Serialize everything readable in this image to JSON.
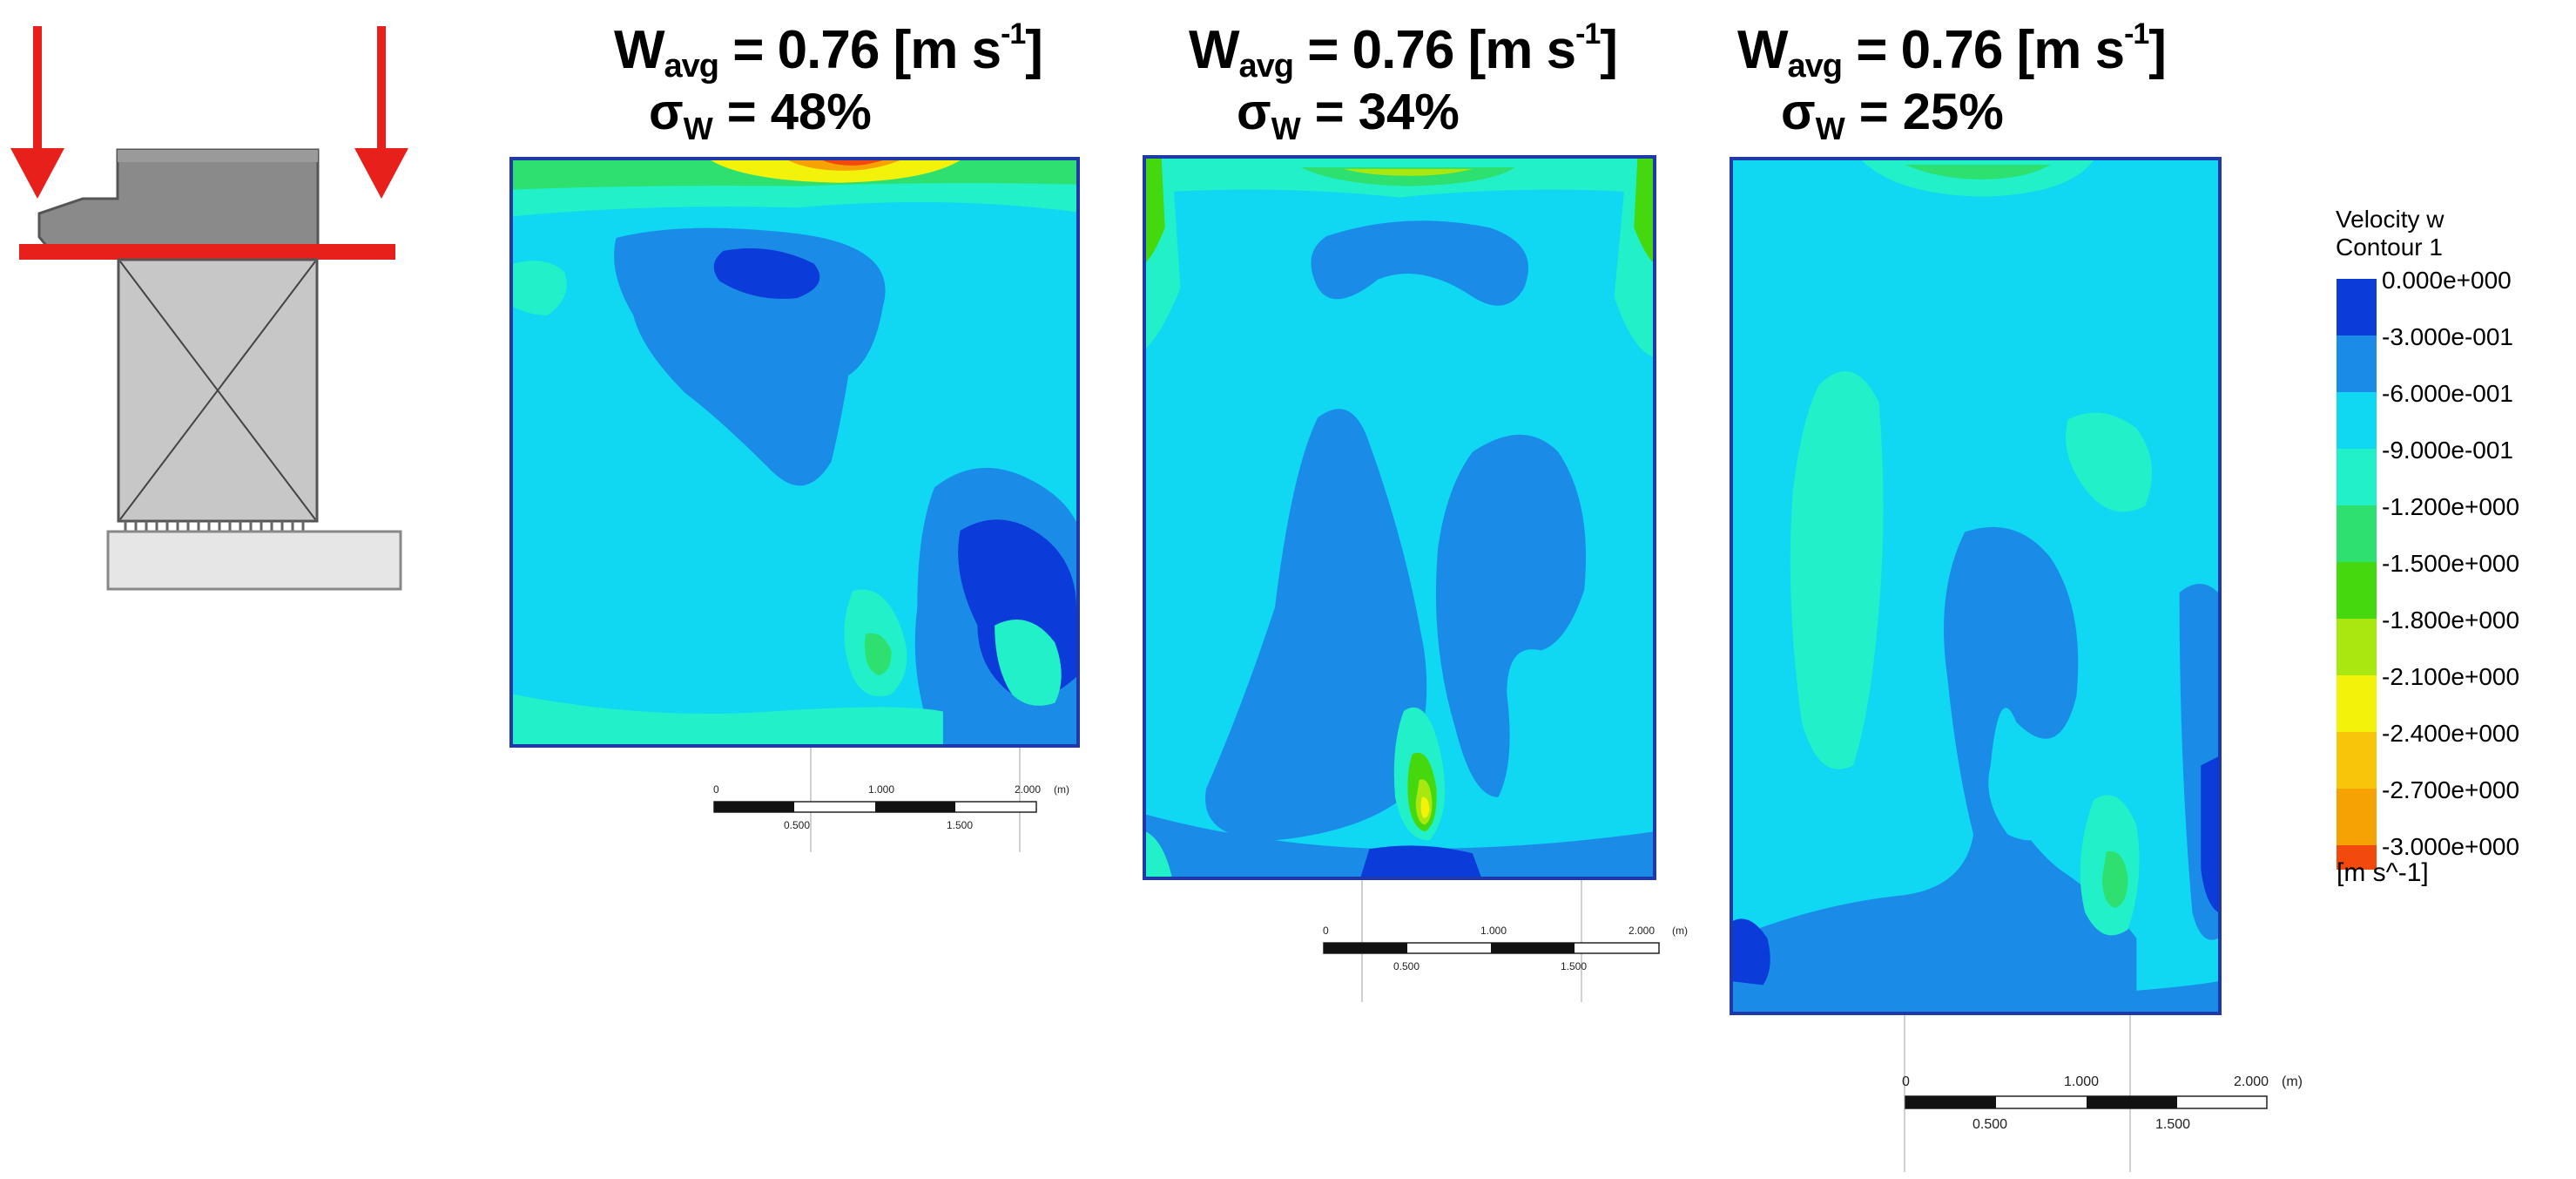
{
  "panels": [
    {
      "w_symbol": "W",
      "w_sub": "avg",
      "w_eq": " = 0.76 [m s",
      "w_sup": "-1",
      "w_close": "]",
      "sigma_symbol": "σ",
      "sigma_sub": "W",
      "sigma_eq": " = 48%"
    },
    {
      "w_symbol": "W",
      "w_sub": "avg",
      "w_eq": " = 0.76 [m s",
      "w_sup": "-1",
      "w_close": "]",
      "sigma_symbol": "σ",
      "sigma_sub": "W",
      "sigma_eq": " = 34%"
    },
    {
      "w_symbol": "W",
      "w_sub": "avg",
      "w_eq": " = 0.76 [m s",
      "w_sup": "-1",
      "w_close": "]",
      "sigma_symbol": "σ",
      "sigma_sub": "W",
      "sigma_eq": " = 25%"
    }
  ],
  "scalebar": {
    "label_0": "0",
    "label_1000": "1.000",
    "label_2000": "2.000",
    "unit": "(m)",
    "label_500": "0.500",
    "label_1500": "1.500"
  },
  "legend": {
    "title_line1": "Velocity w",
    "title_line2": "Contour 1",
    "units": "[m s^-1]",
    "levels": [
      {
        "label": "0.000e+000",
        "color": "#0b3bd8"
      },
      {
        "label": "-3.000e-001",
        "color": "#1a8ce8"
      },
      {
        "label": "-6.000e-001",
        "color": "#10d7f2"
      },
      {
        "label": "-9.000e-001",
        "color": "#22f0c8"
      },
      {
        "label": "-1.200e+000",
        "color": "#2ee070"
      },
      {
        "label": "-1.500e+000",
        "color": "#45d80e"
      },
      {
        "label": "-1.800e+000",
        "color": "#a8e810"
      },
      {
        "label": "-2.100e+000",
        "color": "#f2f20a"
      },
      {
        "label": "-2.400e+000",
        "color": "#f7c60b"
      },
      {
        "label": "-2.700e+000",
        "color": "#f7a204"
      },
      {
        "label": "-3.000e+000",
        "color": "#f24a0c"
      }
    ]
  },
  "colors": {
    "arrow": "#e8201c",
    "panel_border": "#1f3aa8",
    "level0": "#0b3bd8",
    "level1": "#1a8ce8",
    "level2": "#10d7f2",
    "level3": "#22f0c8",
    "level4": "#2ee070",
    "level5": "#45d80e",
    "level6": "#a8e810",
    "level7": "#f2f20a",
    "level8": "#f7c60b",
    "level9": "#f7a204",
    "level10": "#f24a0c"
  }
}
